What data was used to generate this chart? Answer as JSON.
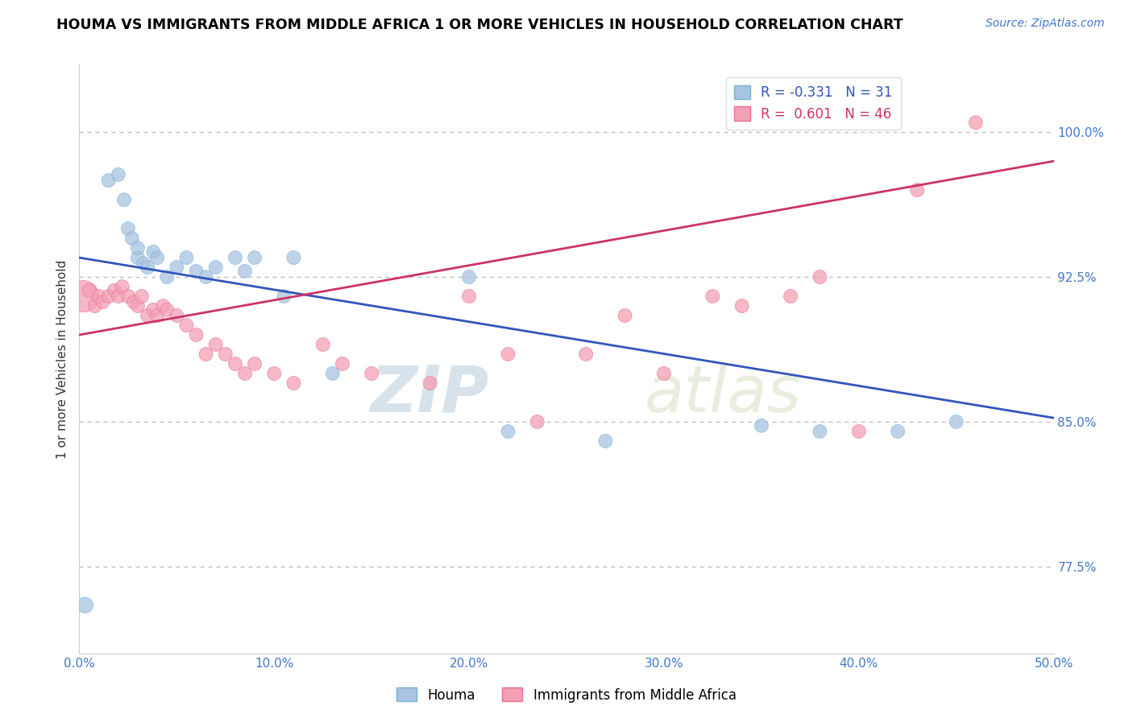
{
  "title": "HOUMA VS IMMIGRANTS FROM MIDDLE AFRICA 1 OR MORE VEHICLES IN HOUSEHOLD CORRELATION CHART",
  "source": "Source: ZipAtlas.com",
  "xlabel_ticks": [
    "0.0%",
    "10.0%",
    "20.0%",
    "30.0%",
    "40.0%",
    "50.0%"
  ],
  "xlabel_vals": [
    0.0,
    10.0,
    20.0,
    30.0,
    40.0,
    50.0
  ],
  "ylabel_ticks": [
    "77.5%",
    "85.0%",
    "92.5%",
    "100.0%"
  ],
  "ylabel_vals": [
    77.5,
    85.0,
    92.5,
    100.0
  ],
  "xlim": [
    0.0,
    50.0
  ],
  "ylim": [
    73.0,
    103.5
  ],
  "houma_color": "#a8c4e0",
  "immigrant_color": "#f4a0b5",
  "houma_edge_color": "#7ab0d8",
  "immigrant_edge_color": "#e87090",
  "houma_line_color": "#3355bb",
  "immigrant_line_color": "#cc3366",
  "houma_R": -0.331,
  "houma_N": 31,
  "immigrant_R": 0.601,
  "immigrant_N": 46,
  "legend_label_houma": "Houma",
  "legend_label_immigrant": "Immigrants from Middle Africa",
  "ylabel": "1 or more Vehicles in Household",
  "watermark_zip": "ZIP",
  "watermark_atlas": "atlas",
  "houma_x": [
    0.3,
    1.5,
    2.0,
    2.3,
    2.5,
    2.7,
    3.0,
    3.0,
    3.3,
    3.5,
    3.8,
    4.0,
    4.5,
    5.0,
    5.5,
    6.0,
    6.5,
    7.0,
    8.0,
    8.5,
    9.0,
    10.5,
    11.0,
    13.0,
    20.0,
    22.0,
    27.0,
    35.0,
    38.0,
    42.0,
    45.0
  ],
  "houma_y": [
    75.5,
    97.5,
    97.8,
    96.5,
    95.0,
    94.5,
    93.5,
    94.0,
    93.2,
    93.0,
    93.8,
    93.5,
    92.5,
    93.0,
    93.5,
    92.8,
    92.5,
    93.0,
    93.5,
    92.8,
    93.5,
    91.5,
    93.5,
    87.5,
    92.5,
    84.5,
    84.0,
    84.8,
    84.5,
    84.5,
    85.0
  ],
  "houma_sizes": [
    200,
    150,
    150,
    150,
    150,
    150,
    150,
    150,
    150,
    150,
    150,
    150,
    150,
    150,
    150,
    150,
    150,
    150,
    150,
    150,
    150,
    150,
    150,
    150,
    150,
    150,
    150,
    150,
    150,
    150,
    150
  ],
  "immigrant_x": [
    0.2,
    0.5,
    0.8,
    1.0,
    1.2,
    1.5,
    1.8,
    2.0,
    2.2,
    2.5,
    2.8,
    3.0,
    3.2,
    3.5,
    3.8,
    4.0,
    4.3,
    4.5,
    5.0,
    5.5,
    6.0,
    6.5,
    7.0,
    7.5,
    8.0,
    8.5,
    9.0,
    10.0,
    11.0,
    12.5,
    13.5,
    15.0,
    18.0,
    20.0,
    22.0,
    23.5,
    26.0,
    28.0,
    30.0,
    32.5,
    34.0,
    36.5,
    38.0,
    40.0,
    43.0,
    46.0
  ],
  "immigrant_y": [
    91.5,
    91.8,
    91.0,
    91.5,
    91.2,
    91.5,
    91.8,
    91.5,
    92.0,
    91.5,
    91.2,
    91.0,
    91.5,
    90.5,
    90.8,
    90.5,
    91.0,
    90.8,
    90.5,
    90.0,
    89.5,
    88.5,
    89.0,
    88.5,
    88.0,
    87.5,
    88.0,
    87.5,
    87.0,
    89.0,
    88.0,
    87.5,
    87.0,
    91.5,
    88.5,
    85.0,
    88.5,
    90.5,
    87.5,
    91.5,
    91.0,
    91.5,
    92.5,
    84.5,
    97.0,
    100.5
  ],
  "immigrant_sizes": [
    800,
    150,
    150,
    150,
    150,
    150,
    150,
    150,
    150,
    150,
    150,
    150,
    150,
    150,
    150,
    150,
    150,
    150,
    150,
    150,
    150,
    150,
    150,
    150,
    150,
    150,
    150,
    150,
    150,
    150,
    150,
    150,
    150,
    150,
    150,
    150,
    150,
    150,
    150,
    150,
    150,
    150,
    150,
    150,
    150,
    150
  ],
  "houma_line_x0": 0.0,
  "houma_line_y0": 93.5,
  "houma_line_x1": 50.0,
  "houma_line_y1": 85.2,
  "immigrant_line_x0": 0.0,
  "immigrant_line_y0": 89.5,
  "immigrant_line_x1": 50.0,
  "immigrant_line_y1": 98.5
}
